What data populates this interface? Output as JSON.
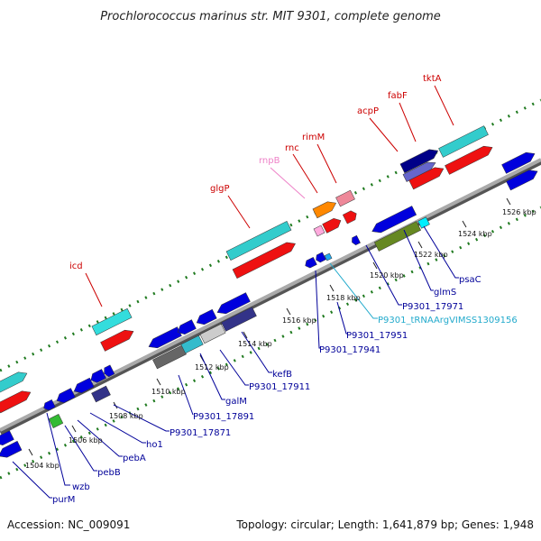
{
  "title": "Prochlorococcus marinus str. MIT 9301, complete genome",
  "footer": {
    "accession": "Accession: NC_009091",
    "topology": "Topology: circular; Length: 1,641,879 bp; Genes: 1,948"
  },
  "colors": {
    "backbone": "#888888",
    "dots": "#1f7a1f",
    "label_red": "#cc0000",
    "label_pink": "#ee82c8",
    "label_blue": "#000099",
    "label_cyan": "#22aacc"
  },
  "ticks": [
    "1504 kbp",
    "1506 kbp",
    "1508 kbp",
    "1510 kbp",
    "1512 kbp",
    "1514 kbp",
    "1516 kbp",
    "1518 kbp",
    "1520 kbp",
    "1522 kbp",
    "1524 kbp",
    "1526 kbp"
  ],
  "upper_labels": [
    {
      "text": "icd",
      "color": "red"
    },
    {
      "text": "glgP",
      "color": "red"
    },
    {
      "text": "rnpB",
      "color": "pink"
    },
    {
      "text": "rnc",
      "color": "red"
    },
    {
      "text": "rimM",
      "color": "red"
    },
    {
      "text": "acpP",
      "color": "red"
    },
    {
      "text": "fabF",
      "color": "red"
    },
    {
      "text": "tktA",
      "color": "red"
    }
  ],
  "lower_labels": [
    {
      "text": "purM",
      "color": "blue"
    },
    {
      "text": "wzb",
      "color": "blue"
    },
    {
      "text": "pebB",
      "color": "blue"
    },
    {
      "text": "pebA",
      "color": "blue"
    },
    {
      "text": "ho1",
      "color": "blue"
    },
    {
      "text": "P9301_17871",
      "color": "blue"
    },
    {
      "text": "P9301_17891",
      "color": "blue"
    },
    {
      "text": "galM",
      "color": "blue"
    },
    {
      "text": "P9301_17911",
      "color": "blue"
    },
    {
      "text": "kefB",
      "color": "blue"
    },
    {
      "text": "P9301_17941",
      "color": "blue"
    },
    {
      "text": "P9301_17951",
      "color": "blue"
    },
    {
      "text": "P9301_tRNAArgVIMSS1309156",
      "color": "cyan"
    },
    {
      "text": "P9301_17971",
      "color": "blue"
    },
    {
      "text": "glmS",
      "color": "blue"
    },
    {
      "text": "psaC",
      "color": "blue"
    }
  ]
}
